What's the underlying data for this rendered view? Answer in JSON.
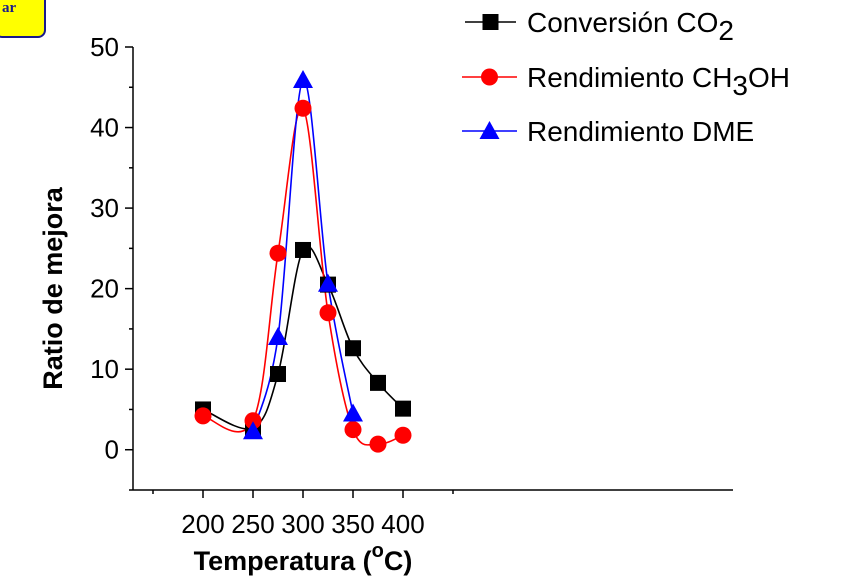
{
  "badge": {
    "text": "ar"
  },
  "chart_data": {
    "type": "line",
    "xlabel_prefix": "Temperatura (",
    "xlabel_sup": "o",
    "xlabel_suffix": "C)",
    "ylabel": "Ratio de mejora",
    "xlim": [
      130,
      730
    ],
    "ylim": [
      -5,
      50
    ],
    "x_ticks": [
      200,
      250,
      300,
      350,
      400
    ],
    "y_ticks": [
      0,
      10,
      20,
      30,
      40,
      50
    ],
    "grid": false,
    "legend_position": "top-right",
    "series": [
      {
        "name_main": "Conversión CO",
        "name_sub": "2",
        "name_tail": "",
        "color": "#000000",
        "marker": "square",
        "x": [
          200,
          250,
          275,
          300,
          325,
          350,
          375,
          400
        ],
        "y": [
          5.0,
          2.7,
          9.4,
          24.8,
          20.5,
          12.6,
          8.3,
          5.1
        ]
      },
      {
        "name_main": "Rendimiento CH",
        "name_sub": "3",
        "name_tail": "OH",
        "color": "#ff0000",
        "marker": "circle",
        "x": [
          200,
          250,
          275,
          300,
          325,
          350,
          375,
          400
        ],
        "y": [
          4.2,
          3.6,
          24.4,
          42.4,
          17.0,
          2.5,
          0.7,
          1.8
        ]
      },
      {
        "name_main": "Rendimiento DME",
        "name_sub": "",
        "name_tail": "",
        "color": "#0000ff",
        "marker": "triangle",
        "x": [
          250,
          275,
          300,
          325,
          350
        ],
        "y": [
          2.3,
          14.0,
          45.9,
          20.6,
          4.5
        ]
      }
    ]
  }
}
